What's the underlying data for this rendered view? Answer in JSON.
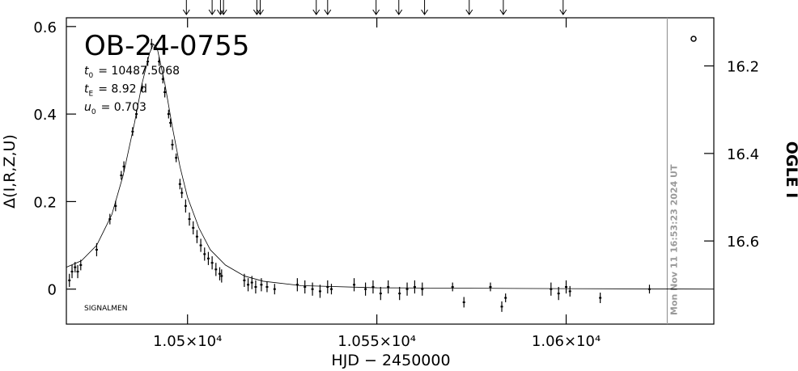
{
  "chart_data": {
    "type": "scatter",
    "title": "OB-24-0755",
    "params": [
      {
        "symbol": "t",
        "subscript": "0",
        "text": "= 10487.5068"
      },
      {
        "symbol": "t",
        "subscript": "E",
        "text": "= 8.92 d"
      },
      {
        "symbol": "u",
        "subscript": "0",
        "text": "= 0.703"
      }
    ],
    "footer_label": "SIGNALMEN",
    "x_label": "HJD − 2450000",
    "y_label": "Δ(I,R,Z,U)",
    "y2_label": "OGLE I",
    "xlim": [
      10468,
      10639
    ],
    "xticks": [
      {
        "value": 10500,
        "label": "1.05×10⁴"
      },
      {
        "value": 10550,
        "label": "1.055×10⁴"
      },
      {
        "value": 10600,
        "label": "1.06×10⁴"
      }
    ],
    "ylim": [
      -0.08,
      0.62
    ],
    "yticks": [
      0,
      0.2,
      0.4,
      0.6
    ],
    "y2lim": [
      16.79,
      16.09
    ],
    "y2ticks": [
      16.2,
      16.4,
      16.6
    ],
    "now_x": 10626.7,
    "now_label": "Mon Nov 11 16:53:23 2024 UT",
    "now_color": "#999999",
    "arrows_x": [
      10499.7,
      10506.5,
      10508.7,
      10509.5,
      10518.3,
      10519.2,
      10534.0,
      10537.0,
      10549.8,
      10555.8,
      10562.6,
      10574.4,
      10583.4,
      10599.2
    ],
    "model": {
      "x": [
        10468,
        10472,
        10476,
        10480,
        10483,
        10486,
        10488,
        10490,
        10491,
        10492,
        10494,
        10496,
        10498,
        10500,
        10503,
        10506,
        10510,
        10515,
        10520,
        10530,
        10550,
        10600,
        10639
      ],
      "values": [
        0.05,
        0.065,
        0.1,
        0.17,
        0.26,
        0.38,
        0.47,
        0.54,
        0.56,
        0.55,
        0.47,
        0.37,
        0.28,
        0.21,
        0.14,
        0.09,
        0.055,
        0.03,
        0.018,
        0.008,
        0.003,
        0.001,
        0.0
      ]
    },
    "points": {
      "x": [
        10468.8,
        10469.5,
        10470.3,
        10471.0,
        10471.8,
        10476.0,
        10479.5,
        10481.0,
        10482.5,
        10483.2,
        10485.5,
        10486.5,
        10488.0,
        10489.5,
        10490.5,
        10492.5,
        10493.5,
        10494.0,
        10495.0,
        10495.5,
        10496.0,
        10497.0,
        10498.0,
        10498.5,
        10499.5,
        10500.5,
        10501.5,
        10502.5,
        10503.5,
        10504.5,
        10505.5,
        10506.5,
        10507.5,
        10508.5,
        10509.0,
        10515.0,
        10516.0,
        10517.0,
        10518.0,
        10519.5,
        10521.0,
        10523.0,
        10529.0,
        10531.0,
        10533.0,
        10535.0,
        10537.0,
        10538.0,
        10544.0,
        10547.0,
        10549.0,
        10551.0,
        10553.0,
        10556.0,
        10558.0,
        10560.0,
        10562.0,
        10570.0,
        10573.0,
        10580.0,
        10583.0,
        10584.0,
        10596.0,
        10598.0,
        10600.0,
        10601.0,
        10609.0,
        10622.0
      ],
      "values": [
        0.02,
        0.04,
        0.05,
        0.04,
        0.055,
        0.09,
        0.16,
        0.19,
        0.26,
        0.28,
        0.36,
        0.4,
        0.46,
        0.52,
        0.56,
        0.52,
        0.48,
        0.45,
        0.4,
        0.38,
        0.33,
        0.3,
        0.24,
        0.22,
        0.19,
        0.16,
        0.14,
        0.12,
        0.1,
        0.08,
        0.07,
        0.06,
        0.045,
        0.035,
        0.03,
        0.02,
        0.01,
        0.015,
        0.005,
        0.01,
        0.005,
        0.0,
        0.01,
        0.005,
        0.0,
        -0.005,
        0.005,
        0.0,
        0.01,
        0.0,
        0.005,
        -0.01,
        0.005,
        -0.01,
        0.0,
        0.005,
        0.0,
        0.005,
        -0.03,
        0.005,
        -0.04,
        -0.02,
        0.0,
        -0.01,
        0.005,
        -0.005,
        -0.02,
        0.0
      ],
      "errors": [
        0.015,
        0.015,
        0.012,
        0.015,
        0.012,
        0.015,
        0.012,
        0.012,
        0.01,
        0.012,
        0.01,
        0.01,
        0.01,
        0.01,
        0.012,
        0.01,
        0.01,
        0.012,
        0.01,
        0.01,
        0.012,
        0.01,
        0.012,
        0.012,
        0.015,
        0.015,
        0.015,
        0.015,
        0.015,
        0.015,
        0.015,
        0.015,
        0.015,
        0.015,
        0.015,
        0.015,
        0.015,
        0.015,
        0.015,
        0.015,
        0.012,
        0.012,
        0.015,
        0.015,
        0.015,
        0.015,
        0.015,
        0.012,
        0.015,
        0.015,
        0.015,
        0.015,
        0.015,
        0.015,
        0.015,
        0.015,
        0.015,
        0.01,
        0.012,
        0.01,
        0.012,
        0.01,
        0.015,
        0.015,
        0.015,
        0.012,
        0.012,
        0.01
      ]
    }
  }
}
